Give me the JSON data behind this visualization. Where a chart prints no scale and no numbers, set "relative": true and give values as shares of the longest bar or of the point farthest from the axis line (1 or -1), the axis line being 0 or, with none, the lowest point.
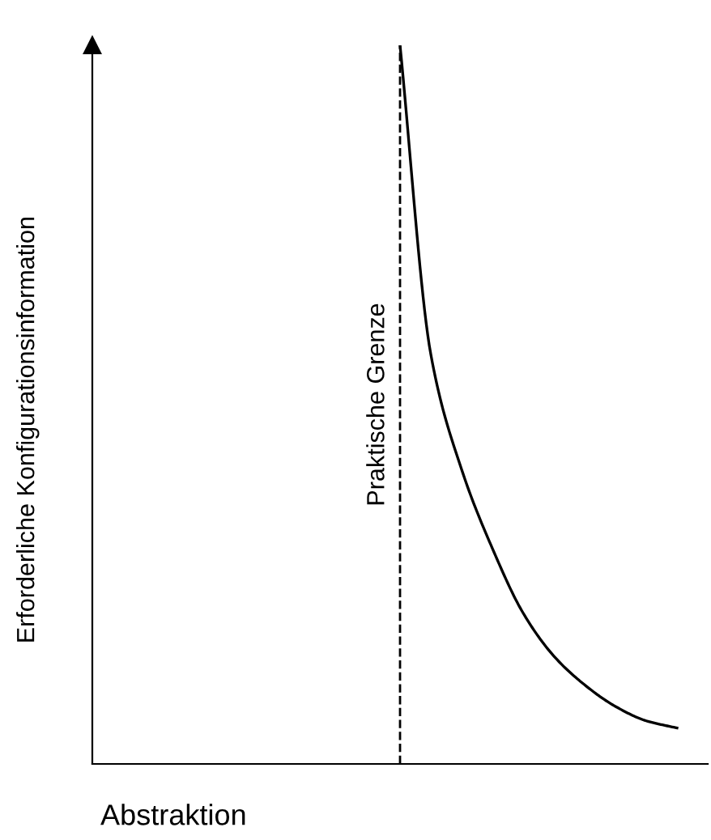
{
  "chart_data": {
    "type": "line",
    "relative": true,
    "xlabel": "Abstraktion",
    "ylabel": "Erforderliche Konfigurationsinformation",
    "categories": [
      null,
      null,
      null,
      null,
      null,
      null,
      null,
      null,
      null,
      null,
      null,
      null,
      null,
      null,
      null,
      null,
      null,
      null,
      null,
      null,
      null
    ],
    "series": [
      {
        "color": "#000000",
        "values": [
          null,
          null,
          null,
          null,
          null,
          null,
          null,
          null,
          null,
          null,
          1.0,
          0.57,
          0.41,
          0.3,
          0.21,
          0.15,
          0.11,
          0.08,
          0.06,
          0.05,
          null
        ]
      }
    ],
    "annotations": [
      "Praktische Grenze"
    ],
    "legend": false,
    "marker": "none",
    "line_style": "solid"
  }
}
